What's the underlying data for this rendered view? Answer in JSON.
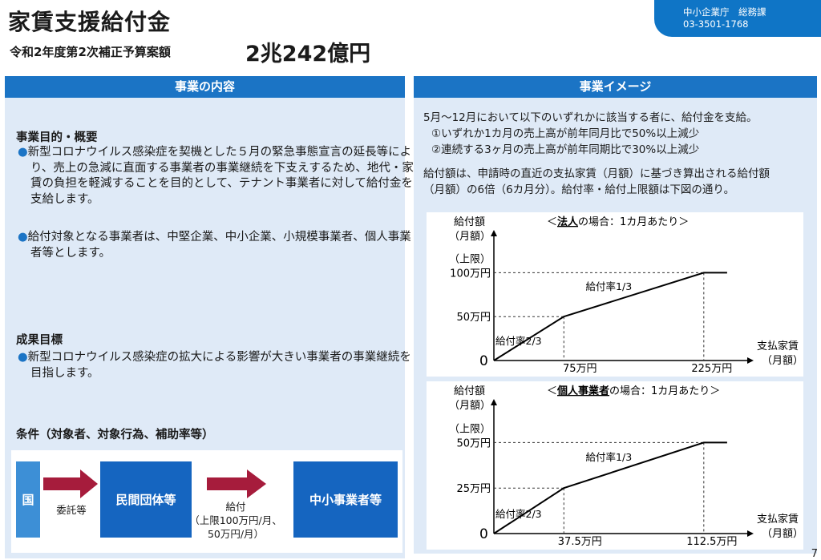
{
  "header": {
    "title": "家賃支援給付金",
    "subtitle": "令和2年度第2次補正予算案額",
    "budget": "2兆242億円",
    "agency_line1": "中小企業庁　総務課",
    "agency_line2": "03-3501-1768"
  },
  "left": {
    "heading": "事業の内容",
    "purpose_title": "事業目的・概要",
    "purpose_bullets": [
      "新型コロナウイルス感染症を契機とした５月の緊急事態宣言の延長等により、売上の急減に直面する事業者の事業継続を下支えするため、地代・家賃の負担を軽減することを目的として、テナント事業者に対して給付金を支給します。",
      "給付対象となる事業者は、中堅企業、中小企業、小規模事業者、個人事業者等とします。"
    ],
    "goal_title": "成果目標",
    "goal_bullet": "新型コロナウイルス感染症の拡大による影響が大きい事業者の事業継続を目指します。",
    "conditions_title": "条件（対象者、対象行為、補助率等）",
    "flow": {
      "box1": "国",
      "arrow1_label": "委託等",
      "box2": "民間団体等",
      "arrow2_label1": "給付",
      "arrow2_label2": "（上限100万円/月、",
      "arrow2_label3": "50万円/月）",
      "box3": "中小事業者等"
    }
  },
  "right": {
    "heading": "事業イメージ",
    "intro1": "5月～12月において以下のいずれかに該当する者に、給付金を支給。",
    "intro2": "①いずれか1カ月の売上高が前年同月比で50%以上減少",
    "intro3": "②連続する3ヶ月の売上高が前年同期比で30%以上減少",
    "intro4": "給付額は、申請時の直近の支払家賃（月額）に基づき算出される給付額",
    "intro5": "（月額）の6倍（6カ月分）。給付率・給付上限額は下図の通り。"
  },
  "chart_data": [
    {
      "type": "line",
      "title_prefix": "＜",
      "title_underlined": "法人",
      "title_suffix": "の場合：1カ月あたり＞",
      "ylabel1": "給付額",
      "ylabel2": "（月額）",
      "xlabel1": "支払家賃",
      "xlabel2": "（月額）",
      "origin_label": "0",
      "x": [
        0,
        75,
        225,
        250
      ],
      "y": [
        0,
        50,
        100,
        100
      ],
      "x_ticks": [
        "75万円",
        "225万円"
      ],
      "y_ticks": [
        "50万円",
        "100万円"
      ],
      "cap_label": "（上限）",
      "rate_label_1": "給付率2/3",
      "rate_label_2": "給付率1/3",
      "xlim": [
        0,
        275
      ],
      "ylim": [
        0,
        125
      ]
    },
    {
      "type": "line",
      "title_prefix": "＜",
      "title_underlined": "個人事業者",
      "title_suffix": "の場合：1カ月あたり＞",
      "ylabel1": "給付額",
      "ylabel2": "（月額）",
      "xlabel1": "支払家賃",
      "xlabel2": "（月額）",
      "origin_label": "0",
      "x": [
        0,
        37.5,
        112.5,
        125
      ],
      "y": [
        0,
        25,
        50,
        50
      ],
      "x_ticks": [
        "37.5万円",
        "112.5万円"
      ],
      "y_ticks": [
        "25万円",
        "50万円"
      ],
      "cap_label": "（上限）",
      "rate_label_1": "給付率2/3",
      "rate_label_2": "給付率1/3",
      "xlim": [
        0,
        137.5
      ],
      "ylim": [
        0,
        62.5
      ]
    }
  ],
  "page_number": "7",
  "colors": {
    "blue": "#1b74c5",
    "dark_blue": "#1565c0",
    "light_panel": "#dfeaf7",
    "arrow_red": "#a61c3c"
  }
}
